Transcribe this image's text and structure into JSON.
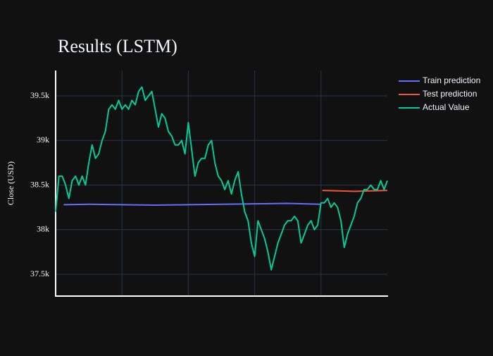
{
  "chart_data": {
    "type": "line",
    "title": "Results (LSTM)",
    "y_label": "Close (USD)",
    "xlim": [
      0,
      500
    ],
    "xticks": [
      100,
      200,
      300,
      400
    ],
    "ylim": [
      37255,
      39785
    ],
    "yticks": [
      {
        "value": 37500,
        "label": "37.5k"
      },
      {
        "value": 38000,
        "label": "38k"
      },
      {
        "value": 38500,
        "label": "38.5k"
      },
      {
        "value": 39000,
        "label": "39k"
      },
      {
        "value": 39500,
        "label": "39.5k"
      }
    ],
    "grid": true,
    "legend": "top-right",
    "series": [
      {
        "name": "Train prediction",
        "color": "#636efa",
        "x": [
          12,
          50,
          100,
          150,
          200,
          250,
          300,
          350,
          400
        ],
        "values": [
          38280,
          38285,
          38280,
          38275,
          38280,
          38285,
          38290,
          38295,
          38285
        ]
      },
      {
        "name": "Test prediction",
        "color": "#ef553b",
        "x": [
          402,
          450,
          500
        ],
        "values": [
          38440,
          38430,
          38440
        ]
      },
      {
        "name": "Actual Value",
        "color": "#00cc96",
        "x": [
          0,
          5,
          10,
          15,
          20,
          25,
          30,
          35,
          40,
          45,
          50,
          55,
          60,
          65,
          70,
          75,
          80,
          85,
          90,
          95,
          100,
          105,
          110,
          115,
          120,
          125,
          130,
          135,
          140,
          145,
          150,
          155,
          160,
          165,
          170,
          175,
          180,
          185,
          190,
          195,
          200,
          205,
          210,
          215,
          220,
          225,
          230,
          235,
          240,
          245,
          250,
          255,
          260,
          265,
          270,
          275,
          280,
          285,
          290,
          295,
          300,
          305,
          310,
          315,
          320,
          325,
          330,
          335,
          340,
          345,
          350,
          355,
          360,
          365,
          370,
          375,
          380,
          385,
          390,
          395,
          400,
          405,
          410,
          415,
          420,
          425,
          430,
          435,
          440,
          445,
          450,
          455,
          460,
          465,
          470,
          475,
          480,
          485,
          490,
          495,
          500
        ],
        "values": [
          38200,
          38600,
          38600,
          38500,
          38350,
          38550,
          38600,
          38500,
          38600,
          38500,
          38750,
          38950,
          38800,
          38850,
          39000,
          39100,
          39350,
          39400,
          39350,
          39450,
          39350,
          39400,
          39350,
          39450,
          39400,
          39550,
          39600,
          39450,
          39500,
          39550,
          39350,
          39150,
          39300,
          39250,
          39100,
          39050,
          38950,
          38950,
          39000,
          38850,
          39200,
          38900,
          38600,
          38750,
          38800,
          38800,
          38950,
          39000,
          38750,
          38600,
          38550,
          38450,
          38550,
          38400,
          38550,
          38650,
          38400,
          38200,
          38100,
          37850,
          37700,
          38100,
          38000,
          37900,
          37750,
          37550,
          37700,
          37850,
          37950,
          38050,
          38100,
          38100,
          38150,
          38100,
          37850,
          37950,
          38050,
          38100,
          38000,
          38050,
          38300,
          38300,
          38350,
          38250,
          38300,
          38250,
          38100,
          37800,
          37950,
          38050,
          38150,
          38300,
          38350,
          38450,
          38450,
          38500,
          38450,
          38450,
          38550,
          38450,
          38550
        ]
      }
    ]
  }
}
